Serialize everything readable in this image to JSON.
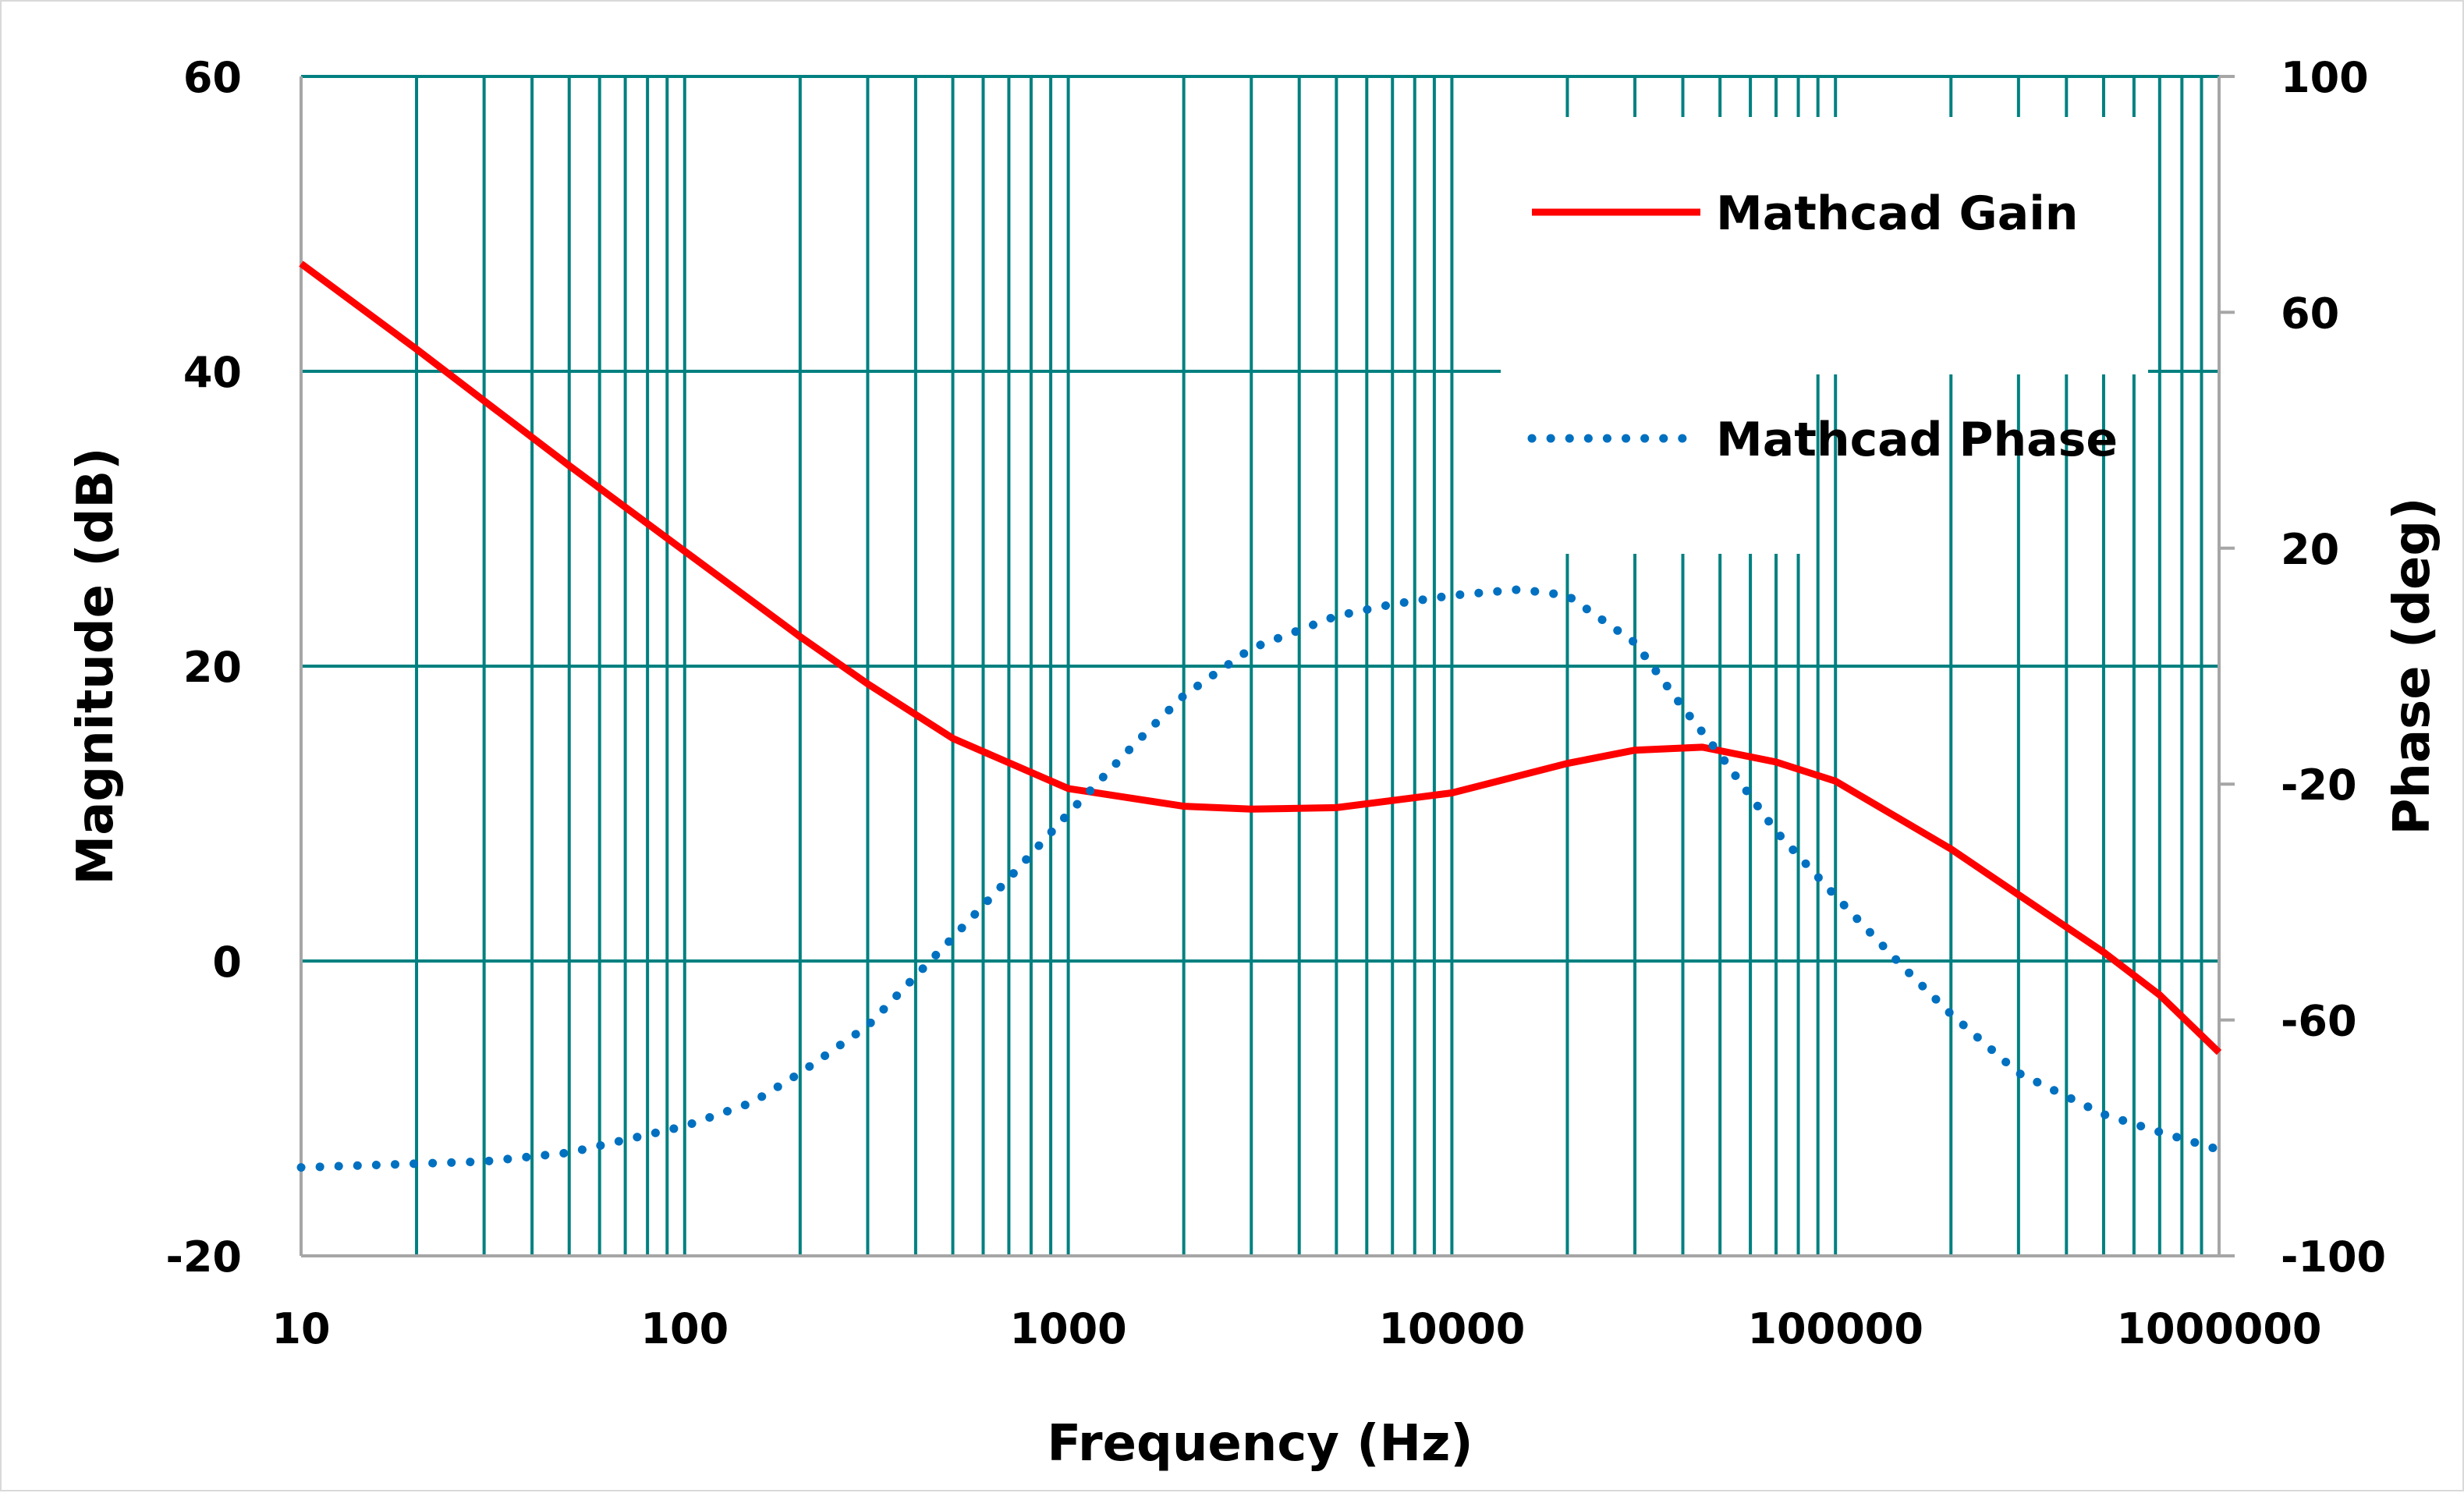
{
  "chart_data": {
    "type": "line",
    "xlabel": "Frequency (Hz)",
    "ylabel": "Magnitude (dB)",
    "y2label": "Phase (deg)",
    "x_scale": "log",
    "xlim": [
      10,
      1000000
    ],
    "ylim": [
      -20,
      60
    ],
    "y2lim": [
      -100,
      100
    ],
    "grid": true,
    "legend_position": "top-right",
    "x_tick_labels": [
      "10",
      "100",
      "1000",
      "10000",
      "100000",
      "1000000"
    ],
    "y_tick_labels": [
      "60",
      "40",
      "20",
      "0",
      "-20"
    ],
    "y2_tick_labels": [
      "100",
      "60",
      "20",
      "-20",
      "-60",
      "-100"
    ],
    "colors": {
      "gain": "#ff0000",
      "phase": "#0070c0",
      "grid": "#008080",
      "axis": "#a6a6a6"
    },
    "series": [
      {
        "name": "Mathcad Gain",
        "axis": "left",
        "style": "solid",
        "x": [
          10,
          20,
          30,
          50,
          100,
          200,
          300,
          500,
          1000,
          2000,
          3000,
          5000,
          10000,
          20000,
          30000,
          45000,
          70000,
          100000,
          200000,
          300000,
          500000,
          700000,
          1000000
        ],
        "y": [
          47.3,
          41.5,
          38.0,
          33.6,
          27.8,
          22.0,
          18.8,
          15.1,
          11.7,
          10.5,
          10.3,
          10.4,
          11.4,
          13.4,
          14.3,
          14.5,
          13.5,
          12.2,
          7.6,
          4.5,
          0.6,
          -2.3,
          -6.2
        ]
      },
      {
        "name": "Mathcad Phase",
        "axis": "right",
        "style": "dotted",
        "x": [
          10,
          30,
          50,
          100,
          150,
          200,
          300,
          500,
          700,
          1000,
          1500,
          2000,
          3000,
          5000,
          7000,
          10000,
          15000,
          20000,
          30000,
          40000,
          50000,
          70000,
          100000,
          150000,
          200000,
          300000,
          500000,
          700000,
          1000000
        ],
        "y": [
          -85,
          -84,
          -82.5,
          -78,
          -74,
          -69,
          -61,
          -46,
          -36,
          -25,
          -13,
          -5,
          3,
          8.5,
          10.5,
          12,
          13,
          12,
          4,
          -7,
          -15,
          -28,
          -39,
          -51,
          -59,
          -69,
          -76,
          -79,
          -82
        ]
      }
    ]
  }
}
